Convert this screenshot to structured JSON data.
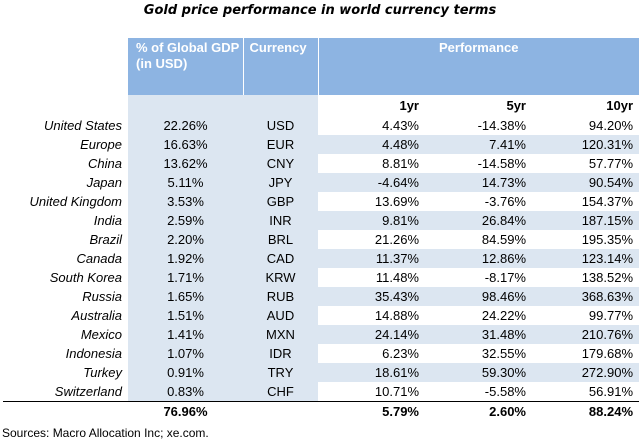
{
  "title": "Gold price performance in world currency terms",
  "headers": {
    "gdp": "% of Global GDP   (in USD)",
    "currency": "Currency",
    "performance": "Performance",
    "p1": "1yr",
    "p5": "5yr",
    "p10": "10yr"
  },
  "rows": [
    {
      "country": "United States",
      "gdp": "22.26%",
      "currency": "USD",
      "y1": "4.43%",
      "y5": "-14.38%",
      "y10": "94.20%"
    },
    {
      "country": "Europe",
      "gdp": "16.63%",
      "currency": "EUR",
      "y1": "4.48%",
      "y5": "7.41%",
      "y10": "120.31%"
    },
    {
      "country": "China",
      "gdp": "13.62%",
      "currency": "CNY",
      "y1": "8.81%",
      "y5": "-14.58%",
      "y10": "57.77%"
    },
    {
      "country": "Japan",
      "gdp": "5.11%",
      "currency": "JPY",
      "y1": "-4.64%",
      "y5": "14.73%",
      "y10": "90.54%"
    },
    {
      "country": "United Kingdom",
      "gdp": "3.53%",
      "currency": "GBP",
      "y1": "13.69%",
      "y5": "-3.76%",
      "y10": "154.37%"
    },
    {
      "country": "India",
      "gdp": "2.59%",
      "currency": "INR",
      "y1": "9.81%",
      "y5": "26.84%",
      "y10": "187.15%"
    },
    {
      "country": "Brazil",
      "gdp": "2.20%",
      "currency": "BRL",
      "y1": "21.26%",
      "y5": "84.59%",
      "y10": "195.35%"
    },
    {
      "country": "Canada",
      "gdp": "1.92%",
      "currency": "CAD",
      "y1": "11.37%",
      "y5": "12.86%",
      "y10": "123.14%"
    },
    {
      "country": "South Korea",
      "gdp": "1.71%",
      "currency": "KRW",
      "y1": "11.48%",
      "y5": "-8.17%",
      "y10": "138.52%"
    },
    {
      "country": "Russia",
      "gdp": "1.65%",
      "currency": "RUB",
      "y1": "35.43%",
      "y5": "98.46%",
      "y10": "368.63%"
    },
    {
      "country": "Australia",
      "gdp": "1.51%",
      "currency": "AUD",
      "y1": "14.88%",
      "y5": "24.22%",
      "y10": "99.77%"
    },
    {
      "country": "Mexico",
      "gdp": "1.41%",
      "currency": "MXN",
      "y1": "24.14%",
      "y5": "31.48%",
      "y10": "210.76%"
    },
    {
      "country": "Indonesia",
      "gdp": "1.07%",
      "currency": "IDR",
      "y1": "6.23%",
      "y5": "32.55%",
      "y10": "179.68%"
    },
    {
      "country": "Turkey",
      "gdp": "0.91%",
      "currency": "TRY",
      "y1": "18.61%",
      "y5": "59.30%",
      "y10": "272.90%"
    },
    {
      "country": "Switzerland",
      "gdp": "0.83%",
      "currency": "CHF",
      "y1": "10.71%",
      "y5": "-5.58%",
      "y10": "56.91%"
    }
  ],
  "totals": {
    "gdp": "76.96%",
    "y1": "5.79%",
    "y5": "2.60%",
    "y10": "88.24%"
  },
  "source": "Sources: Macro Allocation Inc; xe.com.",
  "colors": {
    "header": "#8db4e2",
    "shade": "#dce6f1"
  }
}
